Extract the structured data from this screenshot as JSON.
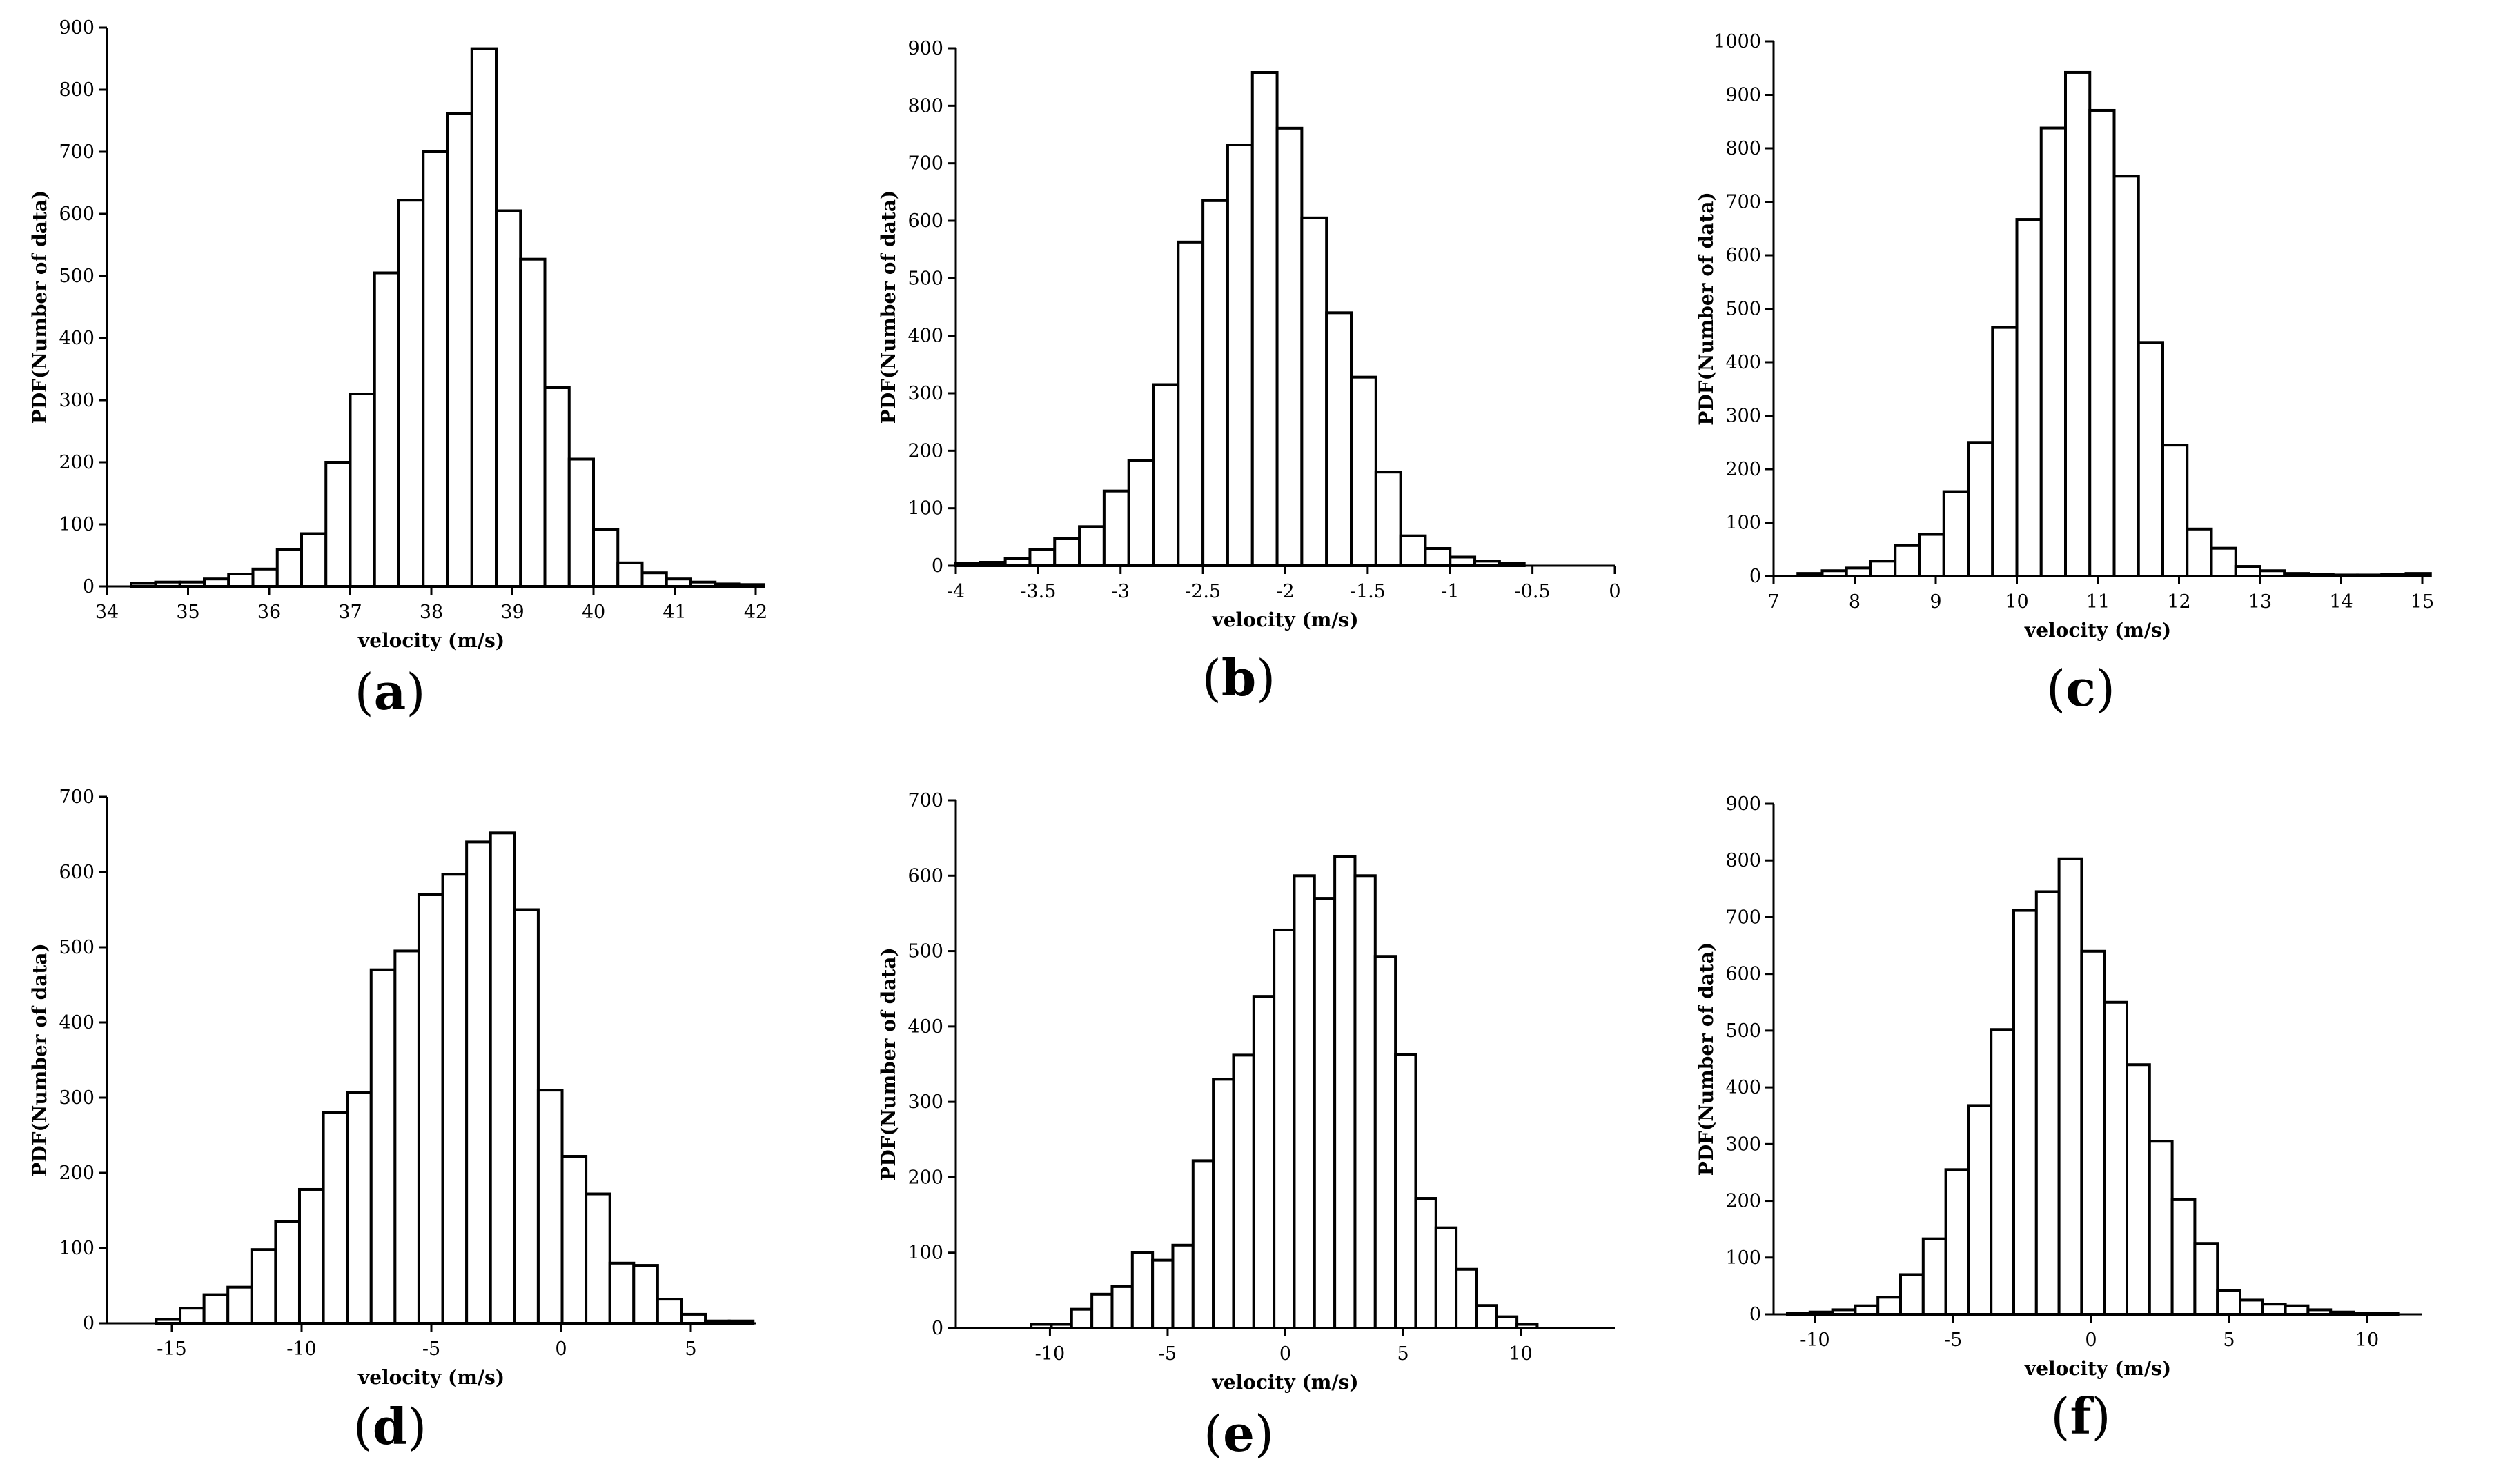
{
  "chart_data": [
    {
      "id": "a",
      "panel_label": "a",
      "type": "bar",
      "xlabel": "velocity (m/s)",
      "ylabel": "PDF(Number of data)",
      "xlim": [
        34,
        42
      ],
      "ylim": [
        0,
        900
      ],
      "xticks": [
        34,
        35,
        36,
        37,
        38,
        39,
        40,
        41,
        42
      ],
      "yticks": [
        0,
        100,
        200,
        300,
        400,
        500,
        600,
        700,
        800,
        900
      ],
      "bin_start": 34.3,
      "bin_width": 0.3,
      "values": [
        5,
        7,
        7,
        12,
        20,
        28,
        60,
        85,
        200,
        310,
        505,
        622,
        700,
        762,
        866,
        605,
        527,
        320,
        205,
        92,
        38,
        22,
        12,
        7,
        4,
        3
      ]
    },
    {
      "id": "b",
      "panel_label": "b",
      "type": "bar",
      "xlabel": "velocity (m/s)",
      "ylabel": "PDF(Number of data)",
      "xlim": [
        -4,
        0
      ],
      "ylim": [
        0,
        900
      ],
      "xticks": [
        -4,
        -3.5,
        -3,
        -2.5,
        -2,
        -1.5,
        -1,
        -0.5,
        0
      ],
      "yticks": [
        0,
        100,
        200,
        300,
        400,
        500,
        600,
        700,
        800,
        900
      ],
      "bin_start": -4.0,
      "bin_width": 0.15,
      "values": [
        4,
        6,
        12,
        28,
        48,
        68,
        130,
        183,
        315,
        563,
        635,
        732,
        858,
        761,
        605,
        440,
        328,
        163,
        52,
        30,
        15,
        8,
        4
      ]
    },
    {
      "id": "c",
      "panel_label": "c",
      "type": "bar",
      "xlabel": "velocity (m/s)",
      "ylabel": "PDF(Number of data)",
      "xlim": [
        7,
        15
      ],
      "ylim": [
        0,
        1000
      ],
      "xticks": [
        7,
        8,
        9,
        10,
        11,
        12,
        13,
        14,
        15
      ],
      "yticks": [
        0,
        100,
        200,
        300,
        400,
        500,
        600,
        700,
        800,
        900,
        1000
      ],
      "bin_start": 7.3,
      "bin_width": 0.3,
      "values": [
        5,
        10,
        15,
        28,
        57,
        78,
        158,
        250,
        465,
        667,
        838,
        942,
        871,
        748,
        437,
        245,
        88,
        52,
        18,
        10,
        5,
        3,
        2,
        2,
        3,
        5
      ]
    },
    {
      "id": "d",
      "panel_label": "d",
      "type": "bar",
      "xlabel": "velocity (m/s)",
      "ylabel": "PDF(Number of data)",
      "xlim": [
        -17.5,
        7.5
      ],
      "ylim": [
        0,
        700
      ],
      "xticks": [
        -15,
        -10,
        -5,
        0,
        5
      ],
      "yticks": [
        0,
        100,
        200,
        300,
        400,
        500,
        600,
        700
      ],
      "bin_start": -15.6,
      "bin_width": 0.92,
      "values": [
        5,
        20,
        38,
        48,
        98,
        135,
        178,
        280,
        307,
        470,
        495,
        570,
        597,
        640,
        652,
        550,
        310,
        222,
        172,
        80,
        77,
        32,
        12,
        3,
        3
      ]
    },
    {
      "id": "e",
      "panel_label": "e",
      "type": "bar",
      "xlabel": "velocity (m/s)",
      "ylabel": "PDF(Number of data)",
      "xlim": [
        -14,
        14
      ],
      "ylim": [
        0,
        700
      ],
      "xticks": [
        -10,
        -5,
        0,
        5,
        10
      ],
      "yticks": [
        0,
        100,
        200,
        300,
        400,
        500,
        600,
        700
      ],
      "bin_start": -10.8,
      "bin_width": 0.86,
      "values": [
        5,
        5,
        25,
        45,
        55,
        100,
        90,
        110,
        222,
        330,
        362,
        440,
        528,
        600,
        570,
        625,
        600,
        493,
        363,
        172,
        133,
        78,
        30,
        15,
        5
      ]
    },
    {
      "id": "f",
      "panel_label": "f",
      "type": "bar",
      "xlabel": "velocity (m/s)",
      "ylabel": "PDF(Number of data)",
      "xlim": [
        -11.5,
        12
      ],
      "ylim": [
        0,
        900
      ],
      "xticks": [
        -10,
        -5,
        0,
        5,
        10
      ],
      "yticks": [
        0,
        100,
        200,
        300,
        400,
        500,
        600,
        700,
        800,
        900
      ],
      "bin_start": -11.0,
      "bin_width": 0.82,
      "values": [
        2,
        4,
        8,
        15,
        30,
        70,
        133,
        255,
        368,
        502,
        712,
        745,
        803,
        640,
        550,
        440,
        305,
        202,
        125,
        42,
        25,
        18,
        15,
        8,
        4,
        2,
        2
      ]
    }
  ]
}
